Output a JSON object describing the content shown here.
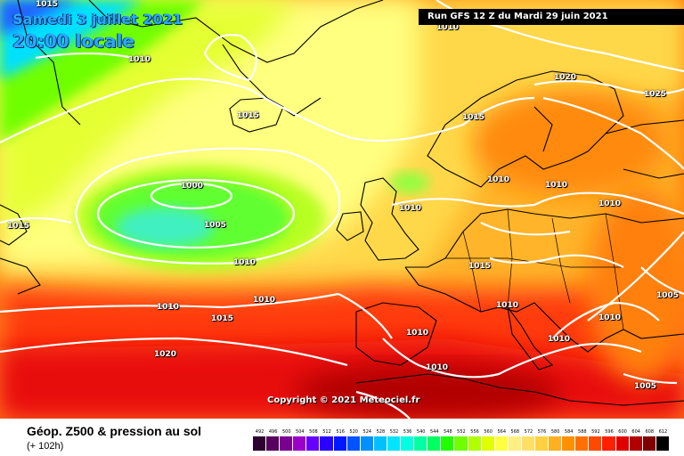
{
  "header": {
    "date": "Samedi 3 juillet 2021",
    "time": "20:00 locale",
    "run": "Run GFS 12 Z du Mardi 29 juin 2021"
  },
  "copyright": "Copyright © 2021 Meteociel.fr",
  "footer": {
    "title": "Géop. Z500 & pression au sol",
    "subtitle": "(+ 102h)"
  },
  "isobar_labels": [
    "1015",
    "1010",
    "1010",
    "1015",
    "1015",
    "1020",
    "1025",
    "1000",
    "1005",
    "1010",
    "1010",
    "1010",
    "1015",
    "1010",
    "1005",
    "1010",
    "1010",
    "1015",
    "1010",
    "1020",
    "1010",
    "1005",
    "1015",
    "1010",
    "1010",
    "1010",
    "1010"
  ],
  "scale": {
    "values": [
      "492",
      "496",
      "500",
      "504",
      "508",
      "512",
      "516",
      "520",
      "524",
      "528",
      "532",
      "536",
      "540",
      "544",
      "548",
      "552",
      "556",
      "560",
      "564",
      "568",
      "572",
      "576",
      "580",
      "584",
      "588",
      "592",
      "596",
      "600",
      "604",
      "608",
      "612"
    ],
    "colors": [
      "#2d0030",
      "#58005e",
      "#7a0090",
      "#9b00c8",
      "#6600ff",
      "#2a00ff",
      "#0018ff",
      "#0054ff",
      "#0090ff",
      "#00c0ff",
      "#00e4ff",
      "#00ffe0",
      "#00ffa0",
      "#00ff60",
      "#20ff00",
      "#70ff00",
      "#b0ff00",
      "#e0ff00",
      "#ffff40",
      "#ffee80",
      "#ffe066",
      "#ffd040",
      "#ffb020",
      "#ff9000",
      "#ff7000",
      "#ff4800",
      "#ff2000",
      "#e00000",
      "#b00000",
      "#800000",
      "#000000"
    ]
  },
  "colors": {
    "title": "#2aa7ff",
    "isobar": "#ffffff",
    "land_border": "#000000"
  }
}
